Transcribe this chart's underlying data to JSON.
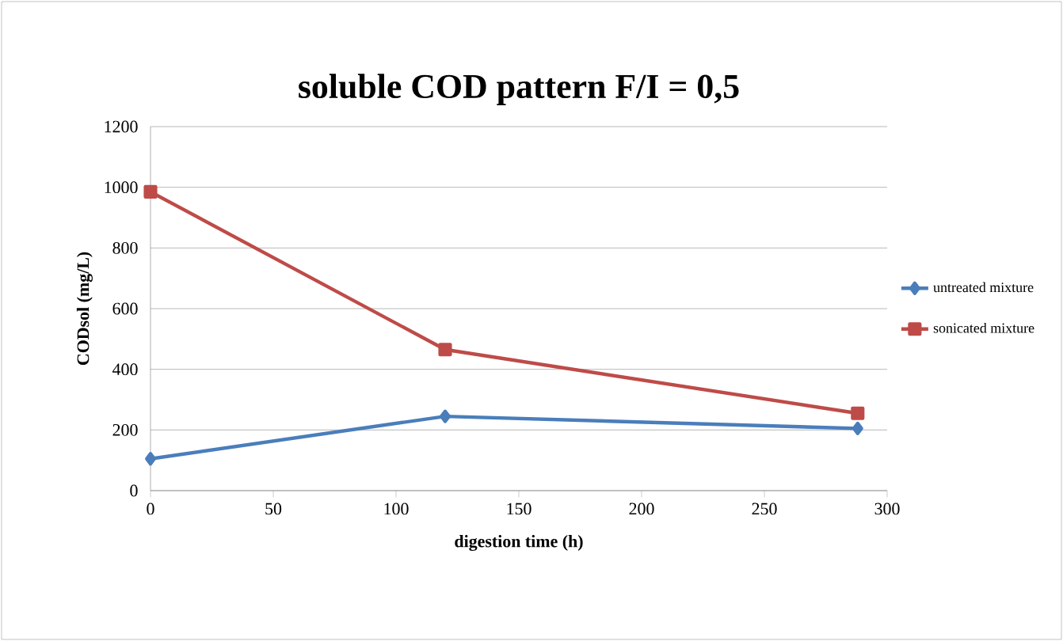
{
  "chart_data": {
    "type": "line",
    "title": "soluble COD pattern F/I = 0,5",
    "xlabel": "digestion time (h)",
    "ylabel": "CODsol (mg/L)",
    "series": [
      {
        "name": "untreated mixture",
        "color": "#4a7ebb",
        "marker": "diamond",
        "x": [
          0,
          120,
          288
        ],
        "values": [
          105,
          245,
          205
        ]
      },
      {
        "name": "sonicated mixture",
        "color": "#be4b48",
        "marker": "square",
        "x": [
          0,
          120,
          288
        ],
        "values": [
          985,
          465,
          255
        ]
      }
    ],
    "xlim": [
      0,
      300
    ],
    "xticks": [
      0,
      50,
      100,
      150,
      200,
      250,
      300
    ],
    "ylim": [
      0,
      1200
    ],
    "yticks": [
      0,
      200,
      400,
      600,
      800,
      1000,
      1200
    ],
    "grid": "y",
    "legend": "right",
    "line_style": "solid"
  }
}
